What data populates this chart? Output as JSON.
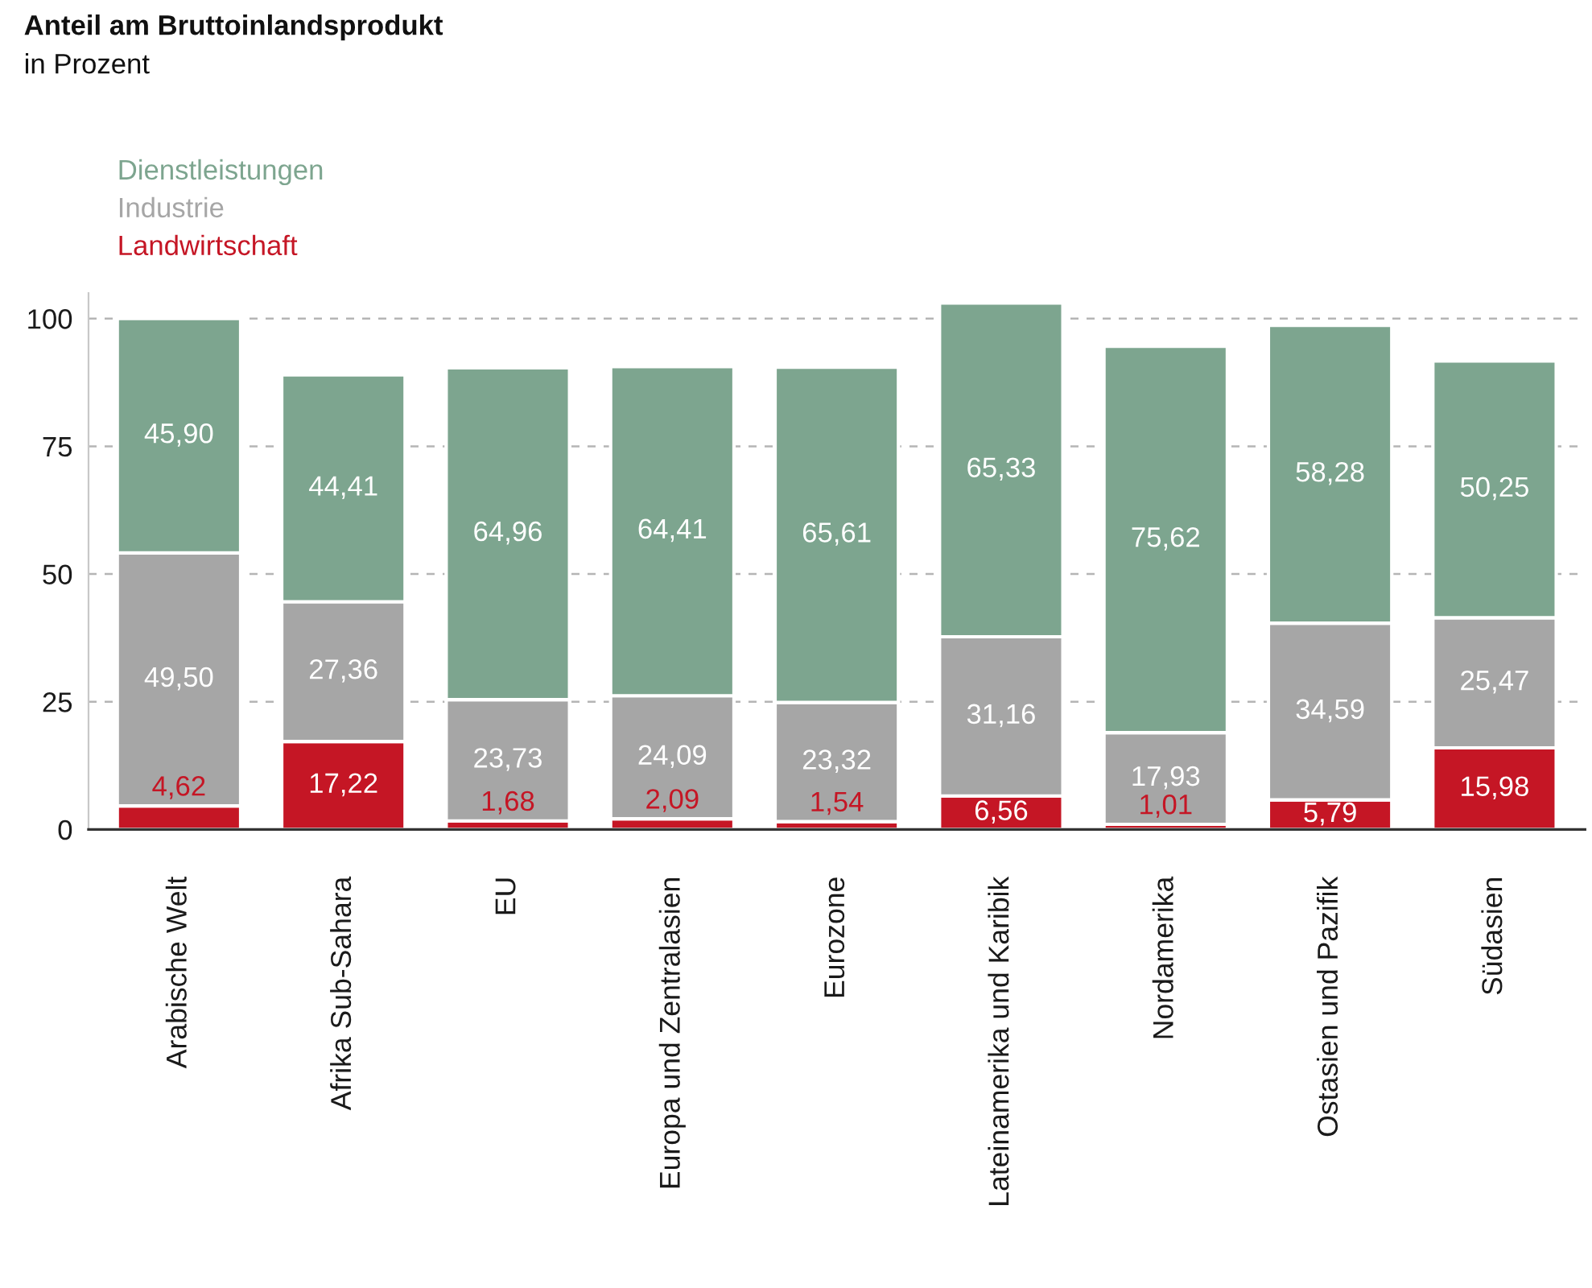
{
  "chart_data": {
    "type": "bar",
    "title": "Anteil am Bruttoinlandsprodukt",
    "subtitle": "in Prozent",
    "categories": [
      "Arabische Welt",
      "Afrika Sub-Sahara",
      "EU",
      "Europa und Zentralasien",
      "Eurozone",
      "Lateinamerika und Karibik",
      "Nordamerika",
      "Ostasien und Pazifik",
      "Südasien"
    ],
    "stacked": true,
    "series": [
      {
        "name": "Landwirtschaft",
        "color": "#c51625",
        "values": [
          4.62,
          17.22,
          1.68,
          2.09,
          1.54,
          6.56,
          1.01,
          5.79,
          15.98
        ],
        "value_labels": [
          "4,62",
          "17,22",
          "1,68",
          "2,09",
          "1,54",
          "6,56",
          "1,01",
          "5,79",
          "15,98"
        ]
      },
      {
        "name": "Industrie",
        "color": "#a6a6a6",
        "values": [
          49.5,
          27.36,
          23.73,
          24.09,
          23.32,
          31.16,
          17.93,
          34.59,
          25.47
        ],
        "value_labels": [
          "49,50",
          "27,36",
          "23,73",
          "24,09",
          "23,32",
          "31,16",
          "17,93",
          "34,59",
          "25,47"
        ]
      },
      {
        "name": "Dienstleistungen",
        "color": "#7da58f",
        "values": [
          45.9,
          44.41,
          64.96,
          64.41,
          65.61,
          65.33,
          75.62,
          58.28,
          50.25
        ],
        "value_labels": [
          "45,90",
          "44,41",
          "64,96",
          "64,41",
          "65,61",
          "65,33",
          "75,62",
          "58,28",
          "50,25"
        ]
      }
    ],
    "ylim": [
      0,
      105
    ],
    "yticks": [
      0,
      25,
      50,
      75,
      100
    ],
    "grid": "y",
    "legend": "top left"
  }
}
